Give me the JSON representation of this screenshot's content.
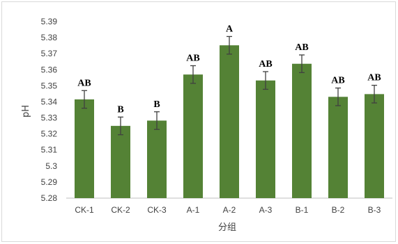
{
  "chart_data": {
    "type": "bar",
    "title": "",
    "xlabel": "分组",
    "ylabel": "pH",
    "ylim": [
      5.28,
      5.39
    ],
    "yticks": [
      5.28,
      5.29,
      5.3,
      5.31,
      5.32,
      5.33,
      5.34,
      5.35,
      5.36,
      5.37,
      5.38,
      5.39
    ],
    "ytick_labels": [
      "5.28",
      "5.29",
      "5.3",
      "5.31",
      "5.32",
      "5.33",
      "5.34",
      "5.35",
      "5.36",
      "5.37",
      "5.38",
      "5.39"
    ],
    "categories": [
      "CK-1",
      "CK-2",
      "CK-3",
      "A-1",
      "A-2",
      "A-3",
      "B-1",
      "B-2",
      "B-3"
    ],
    "values": [
      5.3415,
      5.325,
      5.3283,
      5.357,
      5.3752,
      5.3533,
      5.3637,
      5.3431,
      5.3448
    ],
    "errors": [
      0.0055,
      0.0055,
      0.0055,
      0.0055,
      0.0055,
      0.0055,
      0.0055,
      0.0055,
      0.0055
    ],
    "significance": [
      "AB",
      "B",
      "B",
      "AB",
      "A",
      "AB",
      "AB",
      "AB",
      "AB"
    ],
    "bar_color": "#548235",
    "error_color": "#404040",
    "grid": false,
    "legend": "none"
  }
}
